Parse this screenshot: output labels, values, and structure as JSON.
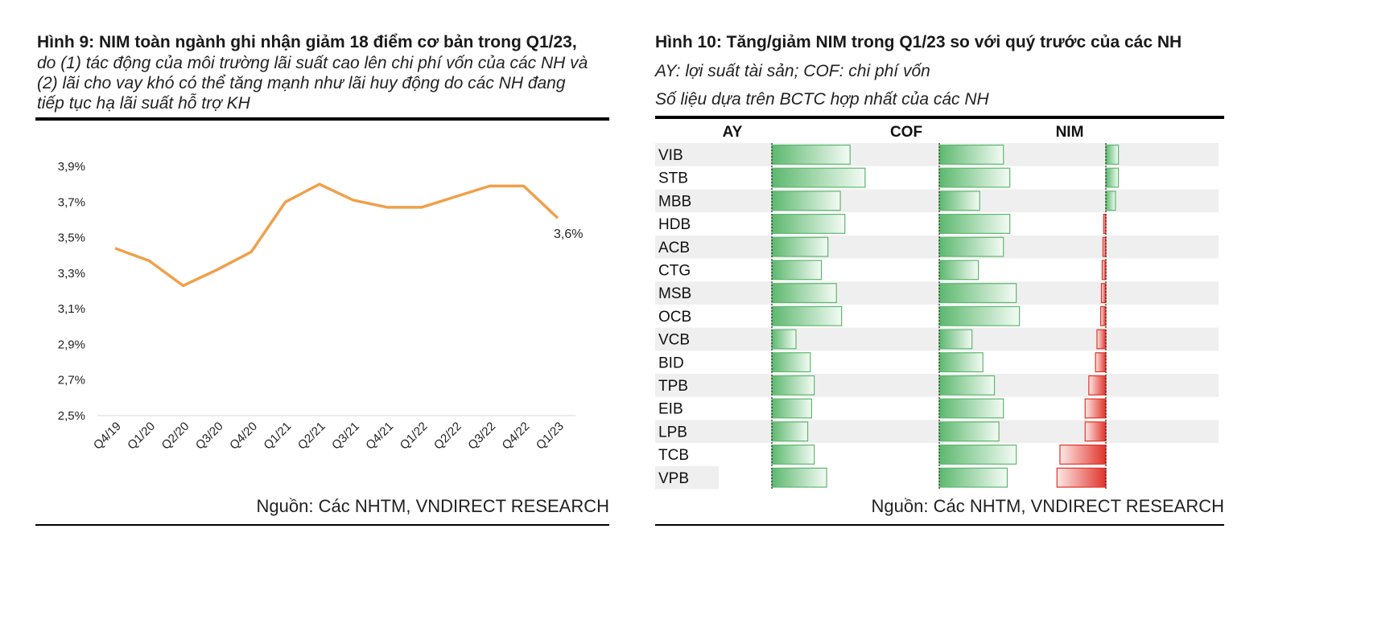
{
  "left": {
    "title_bold": "Hình 9: NIM toàn ngành ghi nhận giảm 18 điểm cơ bản trong Q1/23,",
    "subtitle_lines": [
      "do (1) tác động của môi trường lãi suất cao lên chi phí vốn của các NH và",
      "(2) lãi cho vay khó có thể tăng mạnh như lãi huy động do các NH đang",
      "tiếp tục hạ lãi suất hỗ trợ KH"
    ],
    "source": "Nguồn: Các NHTM, VNDIRECT RESEARCH"
  },
  "right": {
    "title_bold": "Hình 10: Tăng/giảm NIM trong Q1/23 so với quý trước của các NH",
    "subtitle_lines": [
      "AY: lợi suất tài sản; COF: chi phí vốn",
      "Số liệu dựa trên BCTC hợp nhất của các NH"
    ],
    "source": "Nguồn: Các NHTM, VNDIRECT RESEARCH"
  },
  "chart_data": [
    {
      "type": "line",
      "x": [
        "Q4/19",
        "Q1/20",
        "Q2/20",
        "Q3/20",
        "Q4/20",
        "Q1/21",
        "Q2/21",
        "Q3/21",
        "Q4/21",
        "Q1/22",
        "Q2/22",
        "Q3/22",
        "Q4/22",
        "Q1/23"
      ],
      "series": [
        {
          "values": [
            3.44,
            3.37,
            3.23,
            3.32,
            3.42,
            3.7,
            3.8,
            3.71,
            3.67,
            3.67,
            3.73,
            3.79,
            3.79,
            3.61
          ]
        }
      ],
      "yticks": [
        "2,5%",
        "2,7%",
        "2,9%",
        "3,1%",
        "3,3%",
        "3,5%",
        "3,7%",
        "3,9%"
      ],
      "ylim": [
        2.5,
        3.9
      ],
      "annotation": "3,6%",
      "line_color": "#f0a04b",
      "grid": false
    },
    {
      "type": "bar",
      "columns": [
        "AY",
        "COF",
        "NIM"
      ],
      "categories": [
        "VIB",
        "STB",
        "MBB",
        "HDB",
        "ACB",
        "CTG",
        "MSB",
        "OCB",
        "VCB",
        "BID",
        "TPB",
        "EIB",
        "LPB",
        "TCB",
        "VPB"
      ],
      "series": [
        {
          "name": "AY",
          "values": [
            1.2,
            1.43,
            1.05,
            1.12,
            0.86,
            0.76,
            0.99,
            1.07,
            0.37,
            0.59,
            0.65,
            0.61,
            0.55,
            0.65,
            0.84
          ]
        },
        {
          "name": "COF",
          "values": [
            1.0,
            1.1,
            0.63,
            1.1,
            1.0,
            0.61,
            1.2,
            1.25,
            0.51,
            0.68,
            0.86,
            1.0,
            0.93,
            1.2,
            1.06
          ]
        },
        {
          "name": "NIM",
          "values": [
            0.17,
            0.17,
            0.13,
            -0.03,
            -0.04,
            -0.05,
            -0.06,
            -0.07,
            -0.12,
            -0.14,
            -0.23,
            -0.28,
            -0.28,
            -0.62,
            -0.66
          ]
        }
      ],
      "positive_color": "#5cb86e",
      "negative_color": "#e0332a",
      "row_shade": "#efefef"
    }
  ]
}
